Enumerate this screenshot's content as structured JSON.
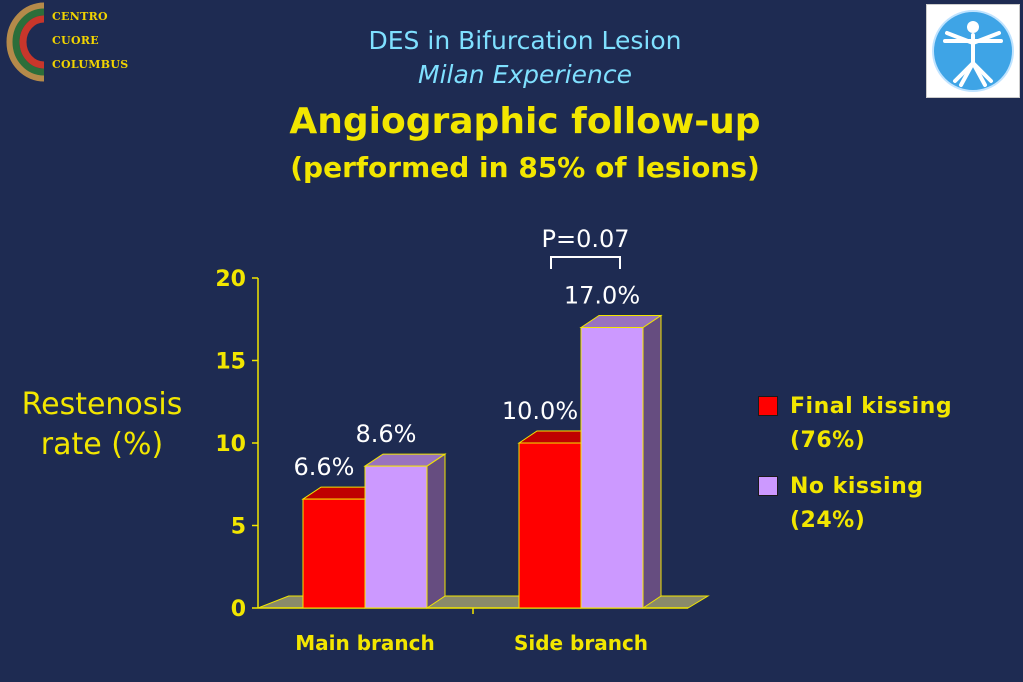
{
  "logo": {
    "lines": [
      "CENTRO",
      "CUORE",
      "COLUMBUS"
    ],
    "colors": {
      "ring_green": "#2c6e3a",
      "ring_red": "#c8362b",
      "ring_tan": "#b58a4a",
      "text": "#f2d400"
    }
  },
  "right_logo": {
    "icon": "vitruvian-man-icon",
    "colors": {
      "circle": "#3ea4e6",
      "figure": "#ffffff"
    }
  },
  "title": {
    "line1": "DES in Bifurcation Lesion",
    "line2": "Milan Experience",
    "line3": "Angiographic follow-up",
    "line4": "(performed in 85% of lesions)"
  },
  "y_axis_label": "Restenosis rate (%)",
  "colors": {
    "background": "#1e2b52",
    "title_cyan": "#7fe0ff",
    "title_yellow": "#f2e600",
    "final_kissing": "#ff0000",
    "no_kissing": "#cc99ff",
    "floor": "#8a8a6a"
  },
  "chart_data": {
    "type": "bar",
    "categories": [
      "Main branch",
      "Side branch"
    ],
    "series": [
      {
        "name": "Final kissing (76%)",
        "values": [
          6.6,
          10.0
        ],
        "labels": [
          "6.6%",
          "10.0%"
        ],
        "color": "#ff0000"
      },
      {
        "name": "No kissing (24%)",
        "values": [
          8.6,
          17.0
        ],
        "labels": [
          "8.6%",
          "17.0%"
        ],
        "color": "#cc99ff"
      }
    ],
    "ylim": [
      0,
      20
    ],
    "yticks": [
      "0",
      "5",
      "10",
      "15",
      "20"
    ],
    "ylabel": "Restenosis rate (%)",
    "annotation": {
      "text": "P=0.07",
      "category": "Side branch"
    },
    "legend": {
      "position": "right",
      "entries": [
        {
          "label": "Final kissing (76%)",
          "color": "#ff0000"
        },
        {
          "label": "No kissing (24%)",
          "color": "#cc99ff"
        }
      ]
    },
    "style": "3d"
  }
}
